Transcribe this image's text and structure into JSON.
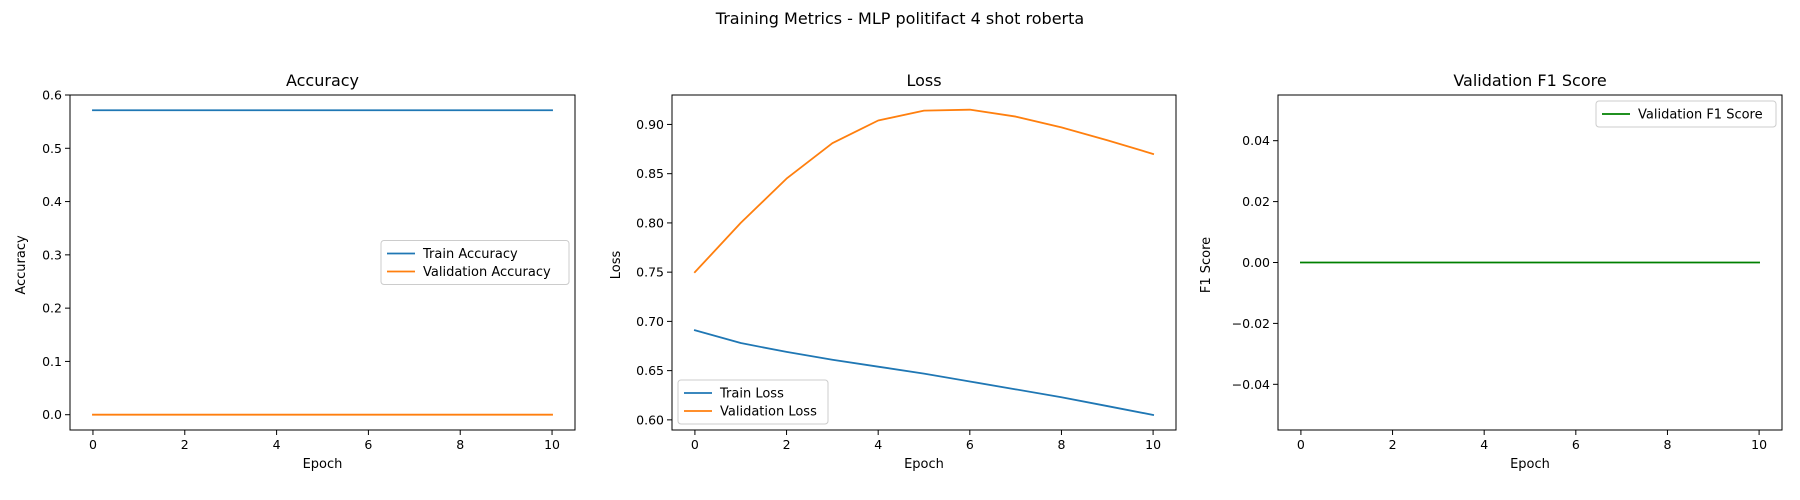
{
  "figure": {
    "suptitle": "Training Metrics - MLP politifact 4 shot roberta"
  },
  "chart_data": [
    {
      "type": "line",
      "title": "Accuracy",
      "xlabel": "Epoch",
      "ylabel": "Accuracy",
      "xlim": [
        -0.5,
        10.5
      ],
      "ylim": [
        -0.0287,
        0.6
      ],
      "xticks": [
        0,
        2,
        4,
        6,
        8,
        10
      ],
      "yticks": [
        0.0,
        0.1,
        0.2,
        0.3,
        0.4,
        0.5,
        0.6
      ],
      "yticklabels": [
        "0.0",
        "0.1",
        "0.2",
        "0.3",
        "0.4",
        "0.5",
        "0.6"
      ],
      "legend_placement": "center-right",
      "grid": false,
      "series": [
        {
          "name": "Train Accuracy",
          "color": "#1f77b4",
          "x": [
            0,
            1,
            2,
            3,
            4,
            5,
            6,
            7,
            8,
            9,
            10
          ],
          "y": [
            0.5714,
            0.5714,
            0.5714,
            0.5714,
            0.5714,
            0.5714,
            0.5714,
            0.5714,
            0.5714,
            0.5714,
            0.5714
          ]
        },
        {
          "name": "Validation Accuracy",
          "color": "#ff7f0e",
          "x": [
            0,
            1,
            2,
            3,
            4,
            5,
            6,
            7,
            8,
            9,
            10
          ],
          "y": [
            0,
            0,
            0,
            0,
            0,
            0,
            0,
            0,
            0,
            0,
            0
          ]
        }
      ]
    },
    {
      "type": "line",
      "title": "Loss",
      "xlabel": "Epoch",
      "ylabel": "Loss",
      "xlim": [
        -0.5,
        10.5
      ],
      "ylim": [
        0.5897,
        0.9299
      ],
      "xticks": [
        0,
        2,
        4,
        6,
        8,
        10
      ],
      "yticks": [
        0.6,
        0.65,
        0.7,
        0.75,
        0.8,
        0.85,
        0.9
      ],
      "yticklabels": [
        "0.60",
        "0.65",
        "0.70",
        "0.75",
        "0.80",
        "0.85",
        "0.90"
      ],
      "legend_placement": "lower-left",
      "grid": false,
      "series": [
        {
          "name": "Train Loss",
          "color": "#1f77b4",
          "x": [
            0,
            1,
            2,
            3,
            4,
            5,
            6,
            7,
            8,
            9,
            10
          ],
          "y": [
            0.691,
            0.678,
            0.669,
            0.661,
            0.654,
            0.647,
            0.639,
            0.631,
            0.623,
            0.614,
            0.605
          ]
        },
        {
          "name": "Validation Loss",
          "color": "#ff7f0e",
          "x": [
            0,
            1,
            2,
            3,
            4,
            5,
            6,
            7,
            8,
            9,
            10
          ],
          "y": [
            0.75,
            0.8,
            0.845,
            0.881,
            0.904,
            0.914,
            0.915,
            0.908,
            0.897,
            0.884,
            0.87
          ]
        }
      ]
    },
    {
      "type": "line",
      "title": "Validation F1 Score",
      "xlabel": "Epoch",
      "ylabel": "F1 Score",
      "xlim": [
        -0.5,
        10.5
      ],
      "ylim": [
        -0.055,
        0.055
      ],
      "xticks": [
        0,
        2,
        4,
        6,
        8,
        10
      ],
      "yticks": [
        -0.04,
        -0.02,
        0.0,
        0.02,
        0.04
      ],
      "yticklabels": [
        "−0.04",
        "−0.02",
        "0.00",
        "0.02",
        "0.04"
      ],
      "legend_placement": "upper-right",
      "grid": false,
      "series": [
        {
          "name": "Validation F1 Score",
          "color": "#008000",
          "x": [
            0,
            1,
            2,
            3,
            4,
            5,
            6,
            7,
            8,
            9,
            10
          ],
          "y": [
            0,
            0,
            0,
            0,
            0,
            0,
            0,
            0,
            0,
            0,
            0
          ]
        }
      ]
    }
  ]
}
